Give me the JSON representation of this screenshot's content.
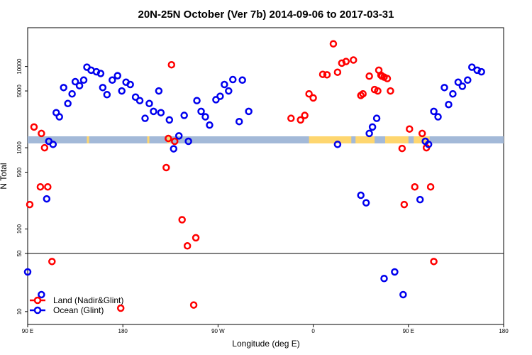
{
  "chart_data": {
    "type": "scatter",
    "title": "20N-25N October (Ver 7b)   2014-09-06 to 2017-03-31",
    "xlabel": "Longitude (deg E)",
    "ylabel": "N Total",
    "x_ticks": [
      {
        "x": 90,
        "label": "90 E"
      },
      {
        "x": 180,
        "label": "180"
      },
      {
        "x": 270,
        "label": "90 W"
      },
      {
        "x": 360,
        "label": "0"
      },
      {
        "x": 450,
        "label": "90 E"
      },
      {
        "x": 540,
        "label": "180"
      }
    ],
    "y_ticks": [
      10,
      50,
      100,
      500,
      1000,
      5000,
      10000
    ],
    "xlim": [
      90,
      540
    ],
    "ylim_upper": [
      50,
      30000
    ],
    "ylim_lower": [
      7,
      50
    ],
    "y_scale": "log",
    "grid": false,
    "legend_position": "bottom-left",
    "colors": {
      "land": "#ff0000",
      "ocean": "#0000ee",
      "band_ocean": "#a3b9d8",
      "band_land": "#fed66f"
    },
    "band": {
      "y_center": 1250,
      "ocean_color_key": "band_ocean",
      "land_color_key": "band_land",
      "land_segments": [
        [
          146,
          148
        ],
        [
          203,
          205
        ],
        [
          222,
          225
        ],
        [
          356,
          396
        ],
        [
          400,
          418
        ],
        [
          428,
          450
        ],
        [
          455,
          470
        ]
      ]
    },
    "series": [
      {
        "name": "Land (Nadir&Glint)",
        "color_key": "land",
        "points": [
          [
            92,
            200
          ],
          [
            96,
            1800
          ],
          [
            103,
            1500
          ],
          [
            106,
            1000
          ],
          [
            109,
            330
          ],
          [
            113,
            40
          ],
          [
            102,
            330
          ],
          [
            178,
            11
          ],
          [
            221,
            570
          ],
          [
            223,
            1300
          ],
          [
            226,
            10500
          ],
          [
            229,
            1200
          ],
          [
            236,
            130
          ],
          [
            241,
            62
          ],
          [
            249,
            78
          ],
          [
            247,
            12
          ],
          [
            348,
            2200
          ],
          [
            352,
            2500
          ],
          [
            356,
            4600
          ],
          [
            360,
            4100
          ],
          [
            369,
            8000
          ],
          [
            373,
            7900
          ],
          [
            379,
            19000
          ],
          [
            383,
            8500
          ],
          [
            387,
            11000
          ],
          [
            391,
            11500
          ],
          [
            398,
            12000
          ],
          [
            405,
            4400
          ],
          [
            407,
            4600
          ],
          [
            413,
            7600
          ],
          [
            422,
            9000
          ],
          [
            425,
            7600
          ],
          [
            430,
            7100
          ],
          [
            433,
            5000
          ],
          [
            421,
            5000
          ],
          [
            418,
            5200
          ],
          [
            424,
            7800
          ],
          [
            427,
            7400
          ],
          [
            444,
            980
          ],
          [
            446,
            200
          ],
          [
            451,
            1700
          ],
          [
            456,
            330
          ],
          [
            463,
            1500
          ],
          [
            467,
            1000
          ],
          [
            471,
            330
          ],
          [
            474,
            40
          ],
          [
            339,
            2300
          ]
        ]
      },
      {
        "name": "Ocean (Glint)",
        "color_key": "ocean",
        "points": [
          [
            90,
            30
          ],
          [
            103,
            16
          ],
          [
            108,
            235
          ],
          [
            110,
            1200
          ],
          [
            114,
            1100
          ],
          [
            117,
            2700
          ],
          [
            120,
            2400
          ],
          [
            124,
            5500
          ],
          [
            128,
            3500
          ],
          [
            132,
            4600
          ],
          [
            135,
            6500
          ],
          [
            139,
            5800
          ],
          [
            143,
            6800
          ],
          [
            146,
            9800
          ],
          [
            150,
            9000
          ],
          [
            155,
            8600
          ],
          [
            159,
            8200
          ],
          [
            161,
            5500
          ],
          [
            165,
            4500
          ],
          [
            170,
            6800
          ],
          [
            175,
            7700
          ],
          [
            179,
            5000
          ],
          [
            183,
            6400
          ],
          [
            187,
            6000
          ],
          [
            192,
            4200
          ],
          [
            196,
            3800
          ],
          [
            201,
            2300
          ],
          [
            205,
            3500
          ],
          [
            209,
            2800
          ],
          [
            214,
            5000
          ],
          [
            216,
            2700
          ],
          [
            224,
            2200
          ],
          [
            228,
            970
          ],
          [
            233,
            1400
          ],
          [
            238,
            2500
          ],
          [
            242,
            1200
          ],
          [
            250,
            3800
          ],
          [
            254,
            2800
          ],
          [
            258,
            2400
          ],
          [
            262,
            1900
          ],
          [
            268,
            3900
          ],
          [
            272,
            4300
          ],
          [
            276,
            6000
          ],
          [
            280,
            5000
          ],
          [
            284,
            6900
          ],
          [
            290,
            2100
          ],
          [
            293,
            6800
          ],
          [
            299,
            2800
          ],
          [
            383,
            1100
          ],
          [
            405,
            260
          ],
          [
            410,
            210
          ],
          [
            413,
            1500
          ],
          [
            416,
            1800
          ],
          [
            420,
            2300
          ],
          [
            427,
            25
          ],
          [
            437,
            30
          ],
          [
            445,
            16
          ],
          [
            461,
            230
          ],
          [
            466,
            1200
          ],
          [
            469,
            1100
          ],
          [
            474,
            2800
          ],
          [
            478,
            2400
          ],
          [
            484,
            5500
          ],
          [
            488,
            3400
          ],
          [
            492,
            4600
          ],
          [
            497,
            6400
          ],
          [
            501,
            5700
          ],
          [
            506,
            6800
          ],
          [
            510,
            9800
          ],
          [
            515,
            9000
          ],
          [
            519,
            8600
          ]
        ]
      }
    ]
  }
}
